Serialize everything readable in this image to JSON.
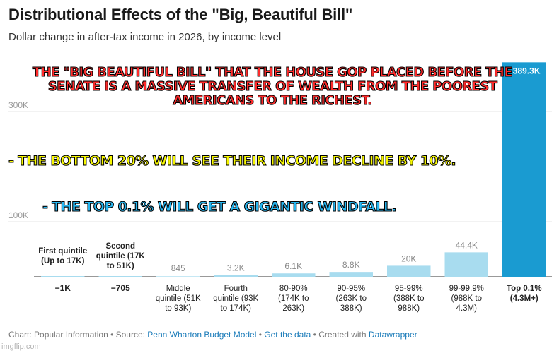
{
  "header": {
    "title": "Distributional Effects of the \"Big, Beautiful Bill\"",
    "subtitle": "Dollar change in after-tax income in 2026, by income level"
  },
  "footer": {
    "prefix": "Chart: Popular Information • Source: ",
    "source_link": "Penn Wharton Budget Model",
    "sep1": " • ",
    "data_link": "Get the data",
    "sep2": " • Created with ",
    "tool_link": "Datawrapper"
  },
  "watermark": "imgflip.com",
  "overlay": {
    "line1": "THE \"BIG BEAUTIFUL BILL\" THAT THE HOUSE GOP PLACED BEFORE THE SENATE IS A MASSIVE TRANSFER OF WEALTH FROM THE POOREST AMERICANS TO THE RICHEST.",
    "line2": "- THE BOTTOM 20% WILL SEE THEIR INCOME DECLINE BY 10%.",
    "line3": "- THE TOP 0.1% WILL GET A GIGANTIC WINDFALL."
  },
  "colors": {
    "bar_light": "#a8dcef",
    "bar_top": "#1a9bd1",
    "grid": "#e5e5e5",
    "axis_text": "#999999"
  },
  "chart_data": {
    "type": "bar",
    "title": "Distributional Effects of the \"Big, Beautiful Bill\"",
    "subtitle": "Dollar change in after-tax income in 2026, by income level",
    "ylim": [
      -2000,
      400000
    ],
    "yticks": [
      100000,
      300000
    ],
    "ytick_labels": [
      "100K",
      "300K"
    ],
    "grid": true,
    "categories": [
      "First quintile (Up to 17K)",
      "Second quintile (17K to 51K)",
      "Middle quintile (51K to 93K)",
      "Fourth quintile (93K to 174K)",
      "80-90% (174K to 263K)",
      "90-95% (263K to 388K)",
      "95-99% (388K to 988K)",
      "99-99.9% (988K to 4.3M)",
      "Top 0.1% (4.3M+)"
    ],
    "category_label_lines": [
      [
        "First quintile",
        "(Up to 17K)"
      ],
      [
        "Second",
        "quintile (17K",
        "to 51K)"
      ],
      [
        "Middle",
        "quintile (51K",
        "to 93K)"
      ],
      [
        "Fourth",
        "quintile (93K",
        "to 174K)"
      ],
      [
        "80-90%",
        "(174K to",
        "263K)"
      ],
      [
        "90-95%",
        "(263K to",
        "388K)"
      ],
      [
        "95-99%",
        "(388K to",
        "988K)"
      ],
      [
        "99-99.9%",
        "(988K to",
        "4.3M)"
      ],
      [
        "Top 0.1%",
        "(4.3M+)"
      ]
    ],
    "values": [
      -1000,
      -705,
      845,
      3200,
      6100,
      8800,
      20000,
      44400,
      389300
    ],
    "value_labels": [
      "−1K",
      "−705",
      "845",
      "3.2K",
      "6.1K",
      "8.8K",
      "20K",
      "44.4K",
      "389.3K"
    ],
    "highlight_index": 8
  }
}
